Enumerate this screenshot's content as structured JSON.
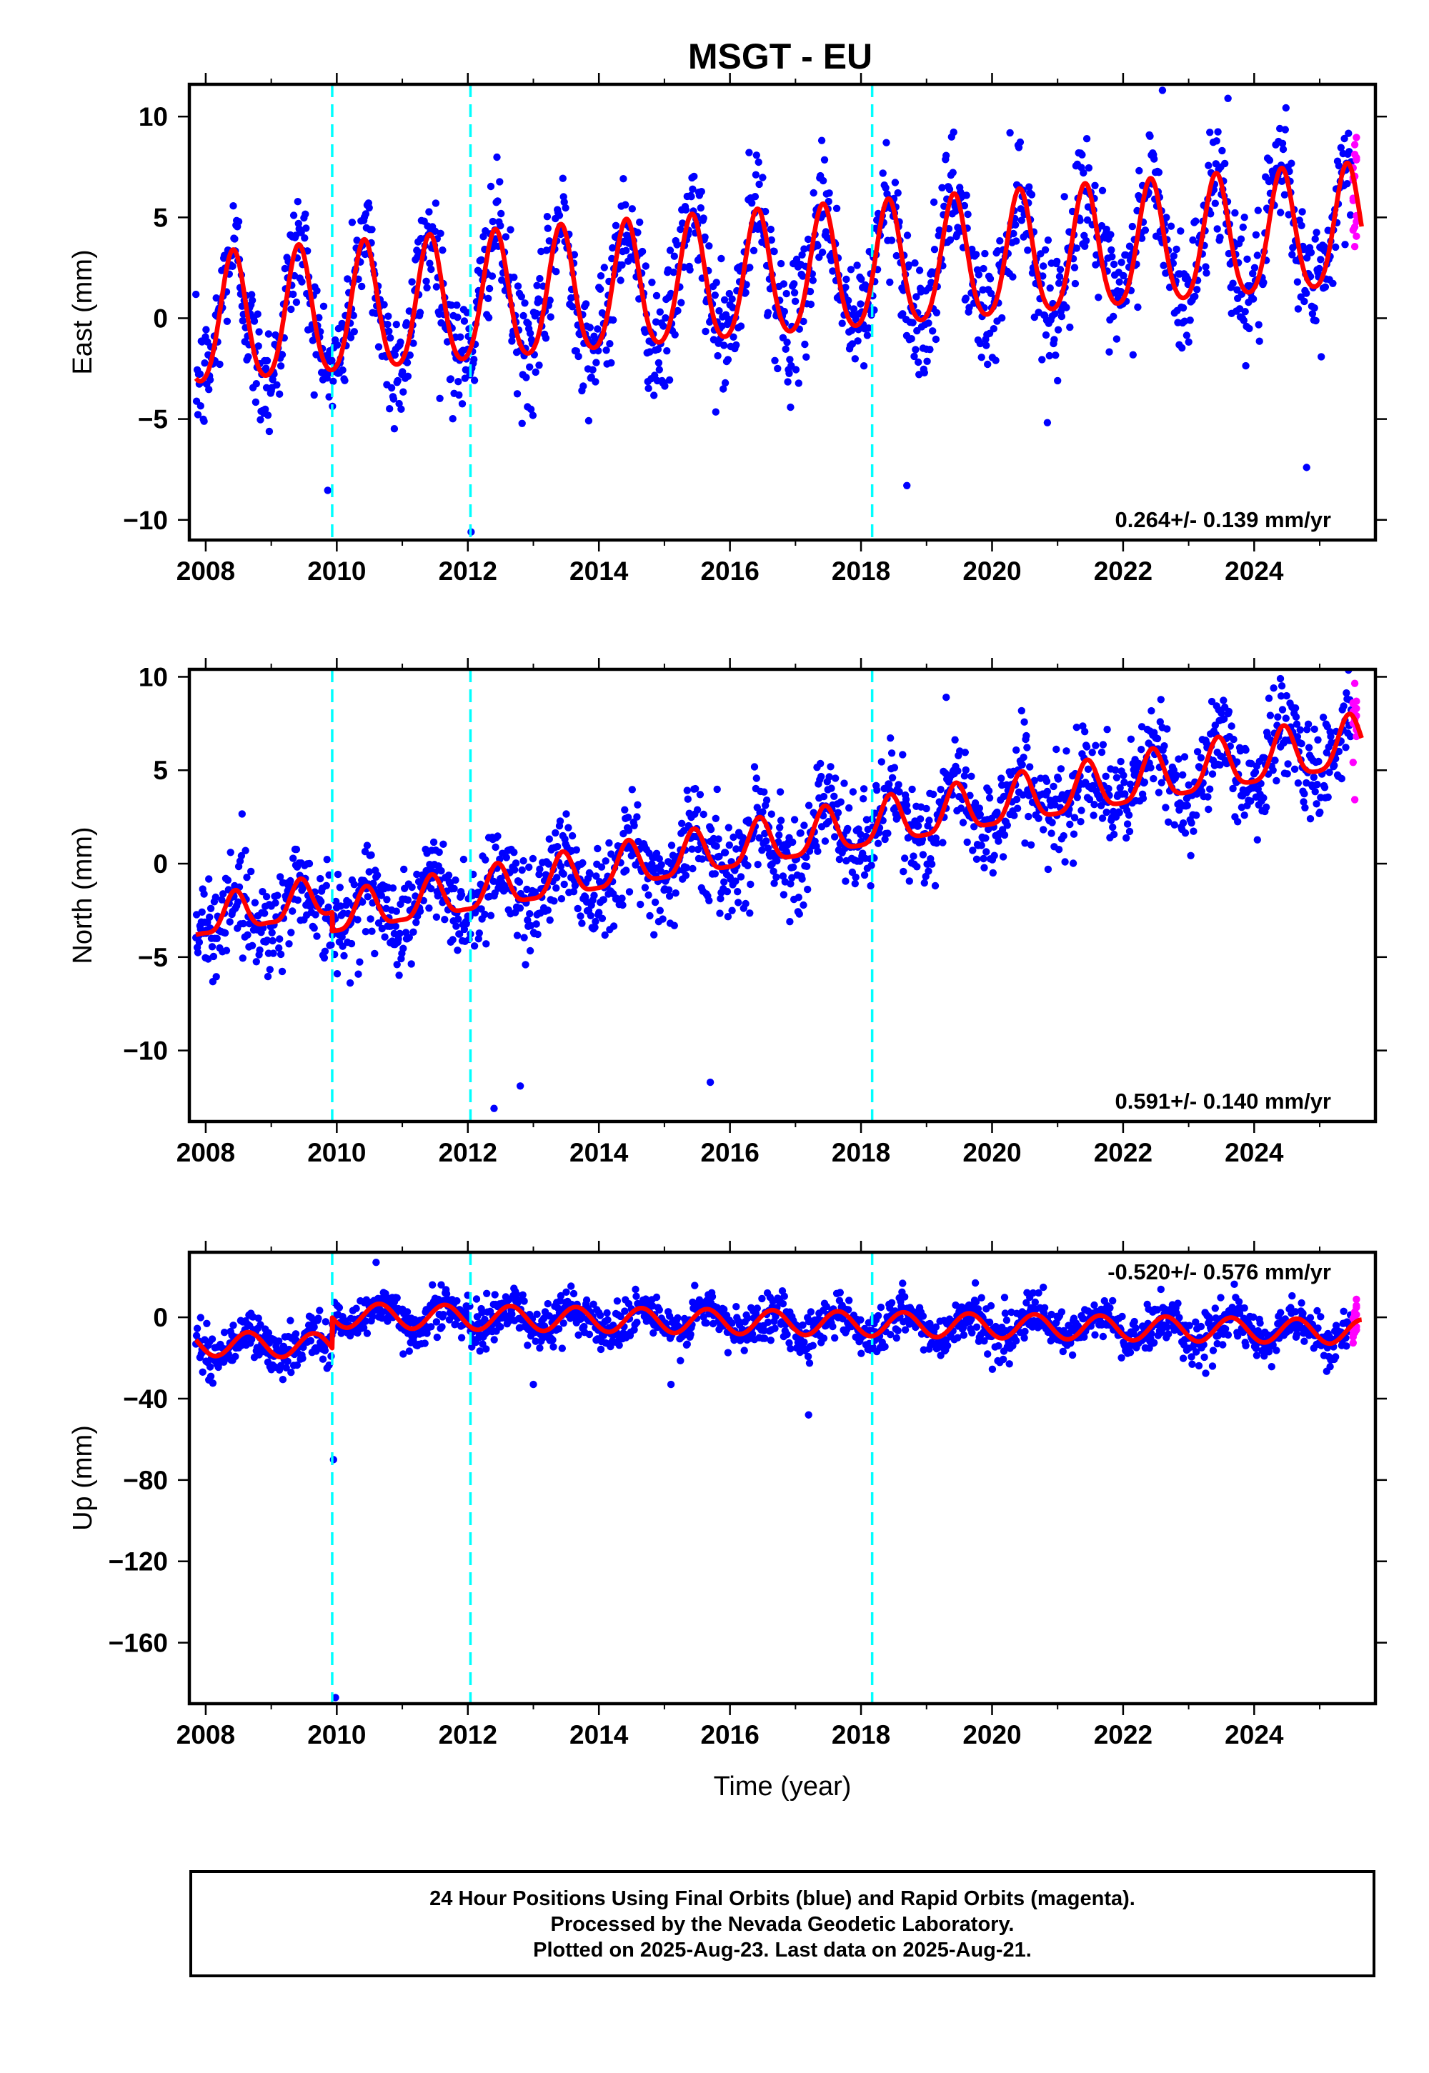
{
  "title": "MSGT - EU",
  "colors": {
    "final_points": "#0000ff",
    "rapid_points": "#ff00ff",
    "model": "#ff0000",
    "events": "#00ffff",
    "frame": "#000000"
  },
  "chart_data": [
    {
      "type": "scatter",
      "name": "east",
      "ylabel": "East (mm)",
      "xlabel": "",
      "xlim": [
        2007.75,
        2025.85
      ],
      "ylim": [
        -11,
        11.6
      ],
      "xticks": [
        2008,
        2010,
        2012,
        2014,
        2016,
        2018,
        2020,
        2022,
        2024
      ],
      "xtick_labels": [
        "2008",
        "2010",
        "2012",
        "2014",
        "2016",
        "2018",
        "2020",
        "2022",
        "2024"
      ],
      "yticks": [
        -10,
        -5,
        0,
        5,
        10
      ],
      "ytick_labels": [
        "−10",
        "−5",
        "0",
        "5",
        "10"
      ],
      "rate_label": "0.264+/- 0.139 mm/yr",
      "events": [
        2009.93,
        2012.04,
        2018.17
      ],
      "data_start": 2007.85,
      "final_end": 2025.48,
      "data_end": 2025.64,
      "model": {
        "offset": -0.3,
        "trend": 0.264,
        "amp_start": 3.2,
        "amp_end": 3.0,
        "semi_amp": 0.4,
        "phase_peak": 0.42
      },
      "scatter_sd": 1.5,
      "outliers": [
        [
          2012.05,
          -10.6
        ],
        [
          2022.6,
          11.3
        ],
        [
          2023.6,
          10.9
        ],
        [
          2018.7,
          -8.3
        ],
        [
          2024.8,
          -7.4
        ]
      ]
    },
    {
      "type": "scatter",
      "name": "north",
      "ylabel": "North (mm)",
      "xlabel": "",
      "xlim": [
        2007.75,
        2025.85
      ],
      "ylim": [
        -13.8,
        10.4
      ],
      "xticks": [
        2008,
        2010,
        2012,
        2014,
        2016,
        2018,
        2020,
        2022,
        2024
      ],
      "xtick_labels": [
        "2008",
        "2010",
        "2012",
        "2014",
        "2016",
        "2018",
        "2020",
        "2022",
        "2024"
      ],
      "yticks": [
        -10,
        -5,
        0,
        5,
        10
      ],
      "ytick_labels": [
        "−10",
        "−5",
        "0",
        "5",
        "10"
      ],
      "rate_label": "0.591+/- 0.140 mm/yr",
      "events": [
        2009.93,
        2012.04,
        2018.17
      ],
      "data_start": 2007.85,
      "final_end": 2025.48,
      "data_end": 2025.64,
      "model": {
        "offset": -3.0,
        "trend": 0.591,
        "amp_start": 1.0,
        "amp_end": 1.4,
        "semi_amp": 0.3,
        "phase_peak": 0.45,
        "step_at": 2009.93,
        "step": -1.0
      },
      "scatter_sd": 1.3,
      "outliers": [
        [
          2012.4,
          -13.1
        ],
        [
          2012.8,
          -11.9
        ],
        [
          2015.7,
          -11.7
        ],
        [
          2024.4,
          9.9
        ],
        [
          2019.3,
          8.9
        ]
      ]
    },
    {
      "type": "scatter",
      "name": "up",
      "ylabel": "Up (mm)",
      "xlabel": "Time (year)",
      "xlim": [
        2007.75,
        2025.85
      ],
      "ylim": [
        -190,
        32
      ],
      "xticks": [
        2008,
        2010,
        2012,
        2014,
        2016,
        2018,
        2020,
        2022,
        2024
      ],
      "xtick_labels": [
        "2008",
        "2010",
        "2012",
        "2014",
        "2016",
        "2018",
        "2020",
        "2022",
        "2024"
      ],
      "yticks": [
        -160,
        -120,
        -80,
        -40,
        0
      ],
      "ytick_labels": [
        "−160",
        "−120",
        "−80",
        "−40",
        "0"
      ],
      "rate_label": "-0.520+/- 0.576 mm/yr",
      "events": [
        2009.93,
        2012.04,
        2018.17
      ],
      "data_start": 2007.85,
      "final_end": 2025.48,
      "data_end": 2025.64,
      "model": {
        "offset": -13,
        "trend": -0.52,
        "amp_start": 6,
        "amp_end": 6,
        "semi_amp": 0,
        "phase_peak": 0.65,
        "step_at": 2009.93,
        "step": 15
      },
      "scatter_sd": 5.5,
      "outliers": [
        [
          2009.95,
          -70
        ],
        [
          2009.98,
          -187
        ],
        [
          2017.2,
          -48
        ],
        [
          2013.0,
          -33
        ],
        [
          2015.1,
          -33
        ],
        [
          2010.6,
          27
        ]
      ]
    }
  ],
  "footer": {
    "line1": "24 Hour Positions Using Final Orbits (blue) and Rapid Orbits (magenta).",
    "line2": "Processed by the Nevada Geodetic Laboratory.",
    "line3": "Plotted on 2025-Aug-23. Last data on 2025-Aug-21."
  }
}
